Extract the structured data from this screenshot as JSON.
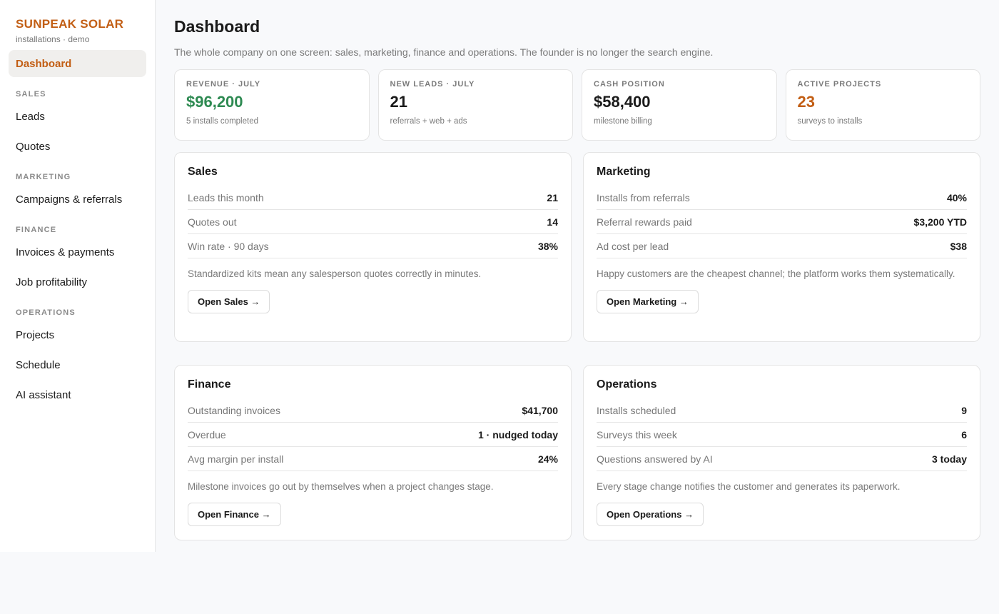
{
  "brand": {
    "name": "SUNPEAK SOLAR",
    "subtitle": "installations · demo",
    "color": "#c25e14"
  },
  "nav": {
    "active": "Dashboard",
    "sections": [
      {
        "title": "SALES",
        "items": [
          "Leads",
          "Quotes"
        ]
      },
      {
        "title": "MARKETING",
        "items": [
          "Campaigns & referrals"
        ]
      },
      {
        "title": "FINANCE",
        "items": [
          "Invoices & payments",
          "Job profitability"
        ]
      },
      {
        "title": "OPERATIONS",
        "items": [
          "Projects",
          "Schedule",
          "AI assistant"
        ]
      }
    ]
  },
  "page": {
    "title": "Dashboard",
    "subtitle": "The whole company on one screen: sales, marketing, finance and operations. The founder is no longer the search engine."
  },
  "kpis": [
    {
      "label": "REVENUE · JULY",
      "value": "$96,200",
      "note": "5 installs completed",
      "color": "#2e8a52"
    },
    {
      "label": "NEW LEADS · JULY",
      "value": "21",
      "note": "referrals + web + ads"
    },
    {
      "label": "CASH POSITION",
      "value": "$58,400",
      "note": "milestone billing"
    },
    {
      "label": "ACTIVE PROJECTS",
      "value": "23",
      "note": "surveys to installs",
      "color": "#c25e14"
    }
  ],
  "cards": {
    "sales": {
      "title": "Sales",
      "rows": [
        {
          "label": "Leads this month",
          "value": "21"
        },
        {
          "label": "Quotes out",
          "value": "14"
        },
        {
          "label": "Win rate · 90 days",
          "value": "38%"
        }
      ],
      "note": "Standardized kits mean any salesperson quotes correctly in minutes.",
      "button": "Open Sales →"
    },
    "marketing": {
      "title": "Marketing",
      "rows": [
        {
          "label": "Installs from referrals",
          "value": "40%"
        },
        {
          "label": "Referral rewards paid",
          "value": "$3,200 YTD"
        },
        {
          "label": "Ad cost per lead",
          "value": "$38"
        }
      ],
      "note": "Happy customers are the cheapest channel; the platform works them systematically.",
      "button": "Open Marketing →"
    },
    "finance": {
      "title": "Finance",
      "rows": [
        {
          "label": "Outstanding invoices",
          "value": "$41,700"
        },
        {
          "label": "Overdue",
          "value": "1 · nudged today"
        },
        {
          "label": "Avg margin per install",
          "value": "24%"
        }
      ],
      "note": "Milestone invoices go out by themselves when a project changes stage.",
      "button": "Open Finance →"
    },
    "operations": {
      "title": "Operations",
      "rows": [
        {
          "label": "Installs scheduled",
          "value": "9"
        },
        {
          "label": "Surveys this week",
          "value": "6"
        },
        {
          "label": "Questions answered by AI",
          "value": "3 today"
        }
      ],
      "note": "Every stage change notifies the customer and generates its paperwork.",
      "button": "Open Operations →"
    }
  }
}
